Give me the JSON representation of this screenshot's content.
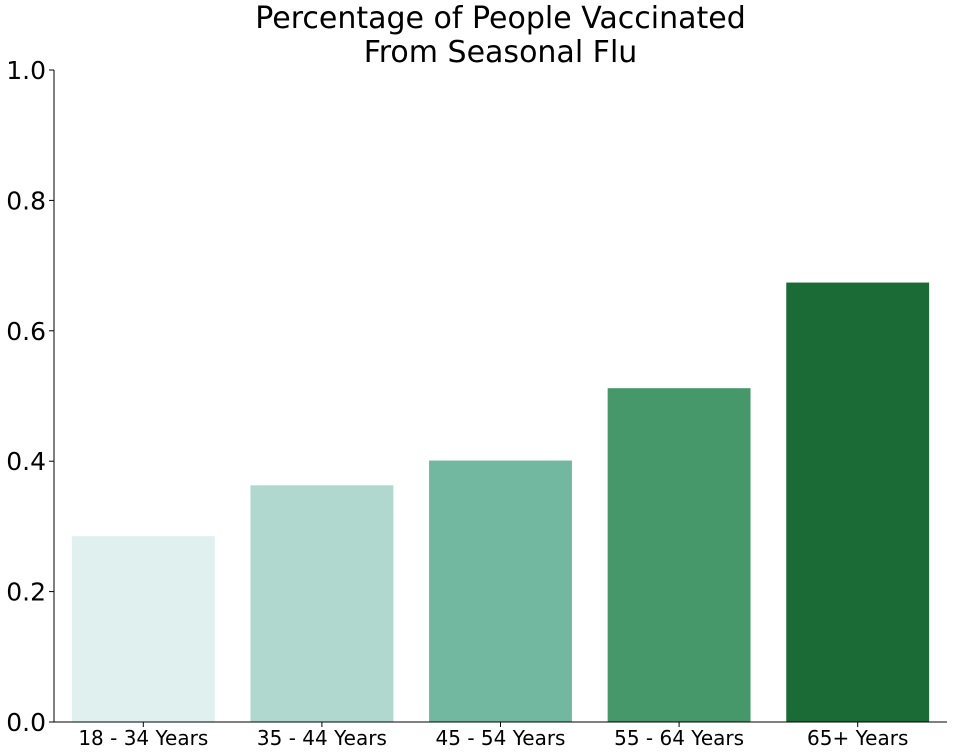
{
  "chart_data": {
    "type": "bar",
    "title_lines": [
      "Percentage of People Vaccinated",
      "From Seasonal Flu"
    ],
    "xlabel": "",
    "ylabel": "",
    "categories": [
      "18 - 34 Years",
      "35 - 44 Years",
      "45 - 54 Years",
      "55 - 64 Years",
      "65+ Years"
    ],
    "values": [
      0.285,
      0.363,
      0.401,
      0.512,
      0.674
    ],
    "colors": [
      "#e0f0ef",
      "#b1d8ce",
      "#72b7a0",
      "#46986b",
      "#1b6b37"
    ],
    "ylim": [
      0,
      1.0
    ],
    "yticks": [
      0.0,
      0.2,
      0.4,
      0.6,
      0.8,
      1.0
    ],
    "ytick_labels": [
      "0.0",
      "0.2",
      "0.4",
      "0.6",
      "0.8",
      "1.0"
    ],
    "grid": false,
    "spines": "left-bottom"
  }
}
